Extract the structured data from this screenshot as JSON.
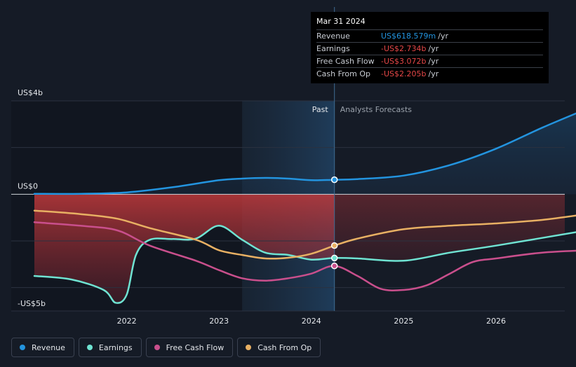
{
  "tooltip": {
    "date": "Mar 31 2024",
    "rows": [
      {
        "label": "Revenue",
        "value": "US$618.579m",
        "unit": "/yr"
      },
      {
        "label": "Earnings",
        "value": "-US$2.734b",
        "unit": "/yr"
      },
      {
        "label": "Free Cash Flow",
        "value": "-US$3.072b",
        "unit": "/yr"
      },
      {
        "label": "Cash From Op",
        "value": "-US$2.205b",
        "unit": "/yr"
      }
    ]
  },
  "legend": [
    {
      "label": "Revenue",
      "color": "#2394df"
    },
    {
      "label": "Earnings",
      "color": "#6fe3d2"
    },
    {
      "label": "Free Cash Flow",
      "color": "#c94f8c"
    },
    {
      "label": "Cash From Op",
      "color": "#e8b063"
    }
  ],
  "chart_data": {
    "type": "line",
    "unit": "US$ billions",
    "ylim": [
      -5,
      4
    ],
    "y_tick_labels": [
      {
        "value": 4,
        "label": "US$4b"
      },
      {
        "value": 0,
        "label": "US$0"
      },
      {
        "value": -5,
        "label": "-US$5b"
      }
    ],
    "x_tick_labels": [
      {
        "value": 2022,
        "label": "2022"
      },
      {
        "value": 2023,
        "label": "2023"
      },
      {
        "value": 2024,
        "label": "2024"
      },
      {
        "value": 2025,
        "label": "2025"
      },
      {
        "value": 2026,
        "label": "2026"
      }
    ],
    "xlim": [
      2020.75,
      2026.98
    ],
    "past_label": "Past",
    "forecast_label": "Analysts Forecasts",
    "past_region_start": 2023.25,
    "divider_x": 2024.25,
    "series": [
      {
        "name": "Revenue",
        "color": "#2394df",
        "points": [
          [
            2021.0,
            0.02
          ],
          [
            2021.5,
            0.02
          ],
          [
            2022.0,
            0.08
          ],
          [
            2022.5,
            0.3
          ],
          [
            2023.0,
            0.6
          ],
          [
            2023.25,
            0.67
          ],
          [
            2023.5,
            0.7
          ],
          [
            2023.75,
            0.67
          ],
          [
            2024.0,
            0.6
          ],
          [
            2024.25,
            0.62
          ],
          [
            2024.5,
            0.65
          ],
          [
            2025.0,
            0.8
          ],
          [
            2025.5,
            1.25
          ],
          [
            2026.0,
            1.95
          ],
          [
            2026.5,
            2.85
          ],
          [
            2026.98,
            3.65
          ]
        ],
        "marker": [
          2024.25,
          0.62
        ]
      },
      {
        "name": "Earnings",
        "color": "#6fe3d2",
        "points": [
          [
            2021.0,
            -3.5
          ],
          [
            2021.4,
            -3.65
          ],
          [
            2021.75,
            -4.1
          ],
          [
            2021.88,
            -4.65
          ],
          [
            2022.0,
            -4.3
          ],
          [
            2022.1,
            -2.6
          ],
          [
            2022.25,
            -1.95
          ],
          [
            2022.5,
            -1.92
          ],
          [
            2022.75,
            -1.9
          ],
          [
            2023.0,
            -1.35
          ],
          [
            2023.25,
            -1.95
          ],
          [
            2023.5,
            -2.5
          ],
          [
            2023.75,
            -2.6
          ],
          [
            2024.0,
            -2.8
          ],
          [
            2024.25,
            -2.73
          ],
          [
            2024.5,
            -2.75
          ],
          [
            2025.0,
            -2.85
          ],
          [
            2025.5,
            -2.5
          ],
          [
            2026.0,
            -2.2
          ],
          [
            2026.98,
            -1.55
          ]
        ],
        "marker": [
          2024.25,
          -2.73
        ]
      },
      {
        "name": "Free Cash Flow",
        "color": "#c94f8c",
        "points": [
          [
            2021.0,
            -1.2
          ],
          [
            2021.5,
            -1.35
          ],
          [
            2021.9,
            -1.55
          ],
          [
            2022.25,
            -2.2
          ],
          [
            2022.75,
            -2.85
          ],
          [
            2023.0,
            -3.25
          ],
          [
            2023.25,
            -3.6
          ],
          [
            2023.5,
            -3.7
          ],
          [
            2023.75,
            -3.6
          ],
          [
            2024.0,
            -3.4
          ],
          [
            2024.25,
            -3.07
          ],
          [
            2024.5,
            -3.5
          ],
          [
            2024.75,
            -4.05
          ],
          [
            2025.0,
            -4.1
          ],
          [
            2025.25,
            -3.9
          ],
          [
            2025.5,
            -3.4
          ],
          [
            2025.75,
            -2.9
          ],
          [
            2026.0,
            -2.75
          ],
          [
            2026.5,
            -2.5
          ],
          [
            2026.98,
            -2.4
          ]
        ],
        "marker": [
          2024.25,
          -3.07
        ]
      },
      {
        "name": "Cash From Op",
        "color": "#e8b063",
        "points": [
          [
            2021.0,
            -0.7
          ],
          [
            2021.5,
            -0.85
          ],
          [
            2021.9,
            -1.05
          ],
          [
            2022.25,
            -1.45
          ],
          [
            2022.75,
            -1.95
          ],
          [
            2023.0,
            -2.4
          ],
          [
            2023.25,
            -2.6
          ],
          [
            2023.5,
            -2.75
          ],
          [
            2023.75,
            -2.72
          ],
          [
            2024.0,
            -2.55
          ],
          [
            2024.25,
            -2.2
          ],
          [
            2024.5,
            -1.9
          ],
          [
            2025.0,
            -1.5
          ],
          [
            2025.5,
            -1.35
          ],
          [
            2026.0,
            -1.25
          ],
          [
            2026.5,
            -1.1
          ],
          [
            2026.98,
            -0.85
          ]
        ],
        "marker": [
          2024.25,
          -2.2
        ]
      }
    ]
  }
}
